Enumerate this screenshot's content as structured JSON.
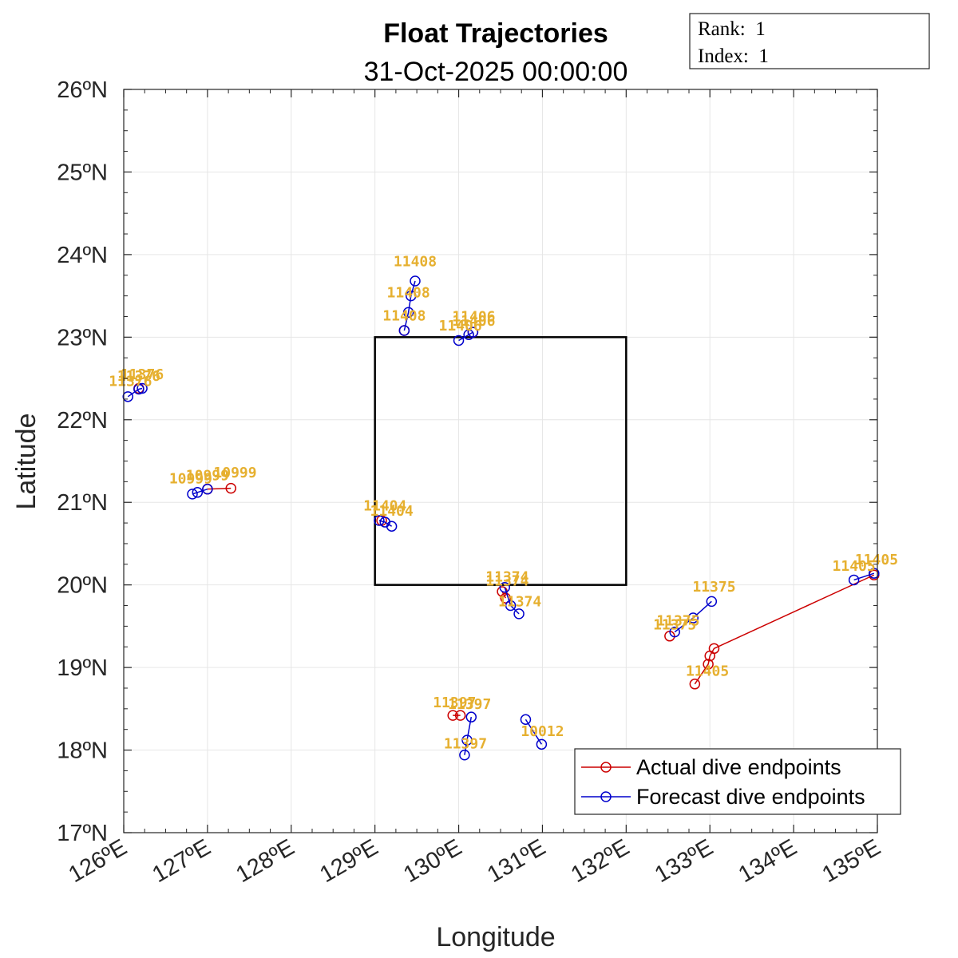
{
  "info_box": {
    "rank_line": "Rank:  1",
    "index_line": "Index:  1"
  },
  "colors": {
    "actual": "#cc0000",
    "forecast": "#0000cc",
    "label": "#e6b030",
    "box": "#000000",
    "grid": "#e6e6e6"
  },
  "chart_data": {
    "type": "line",
    "title": "Float Trajectories",
    "subtitle": "31-Oct-2025 00:00:00",
    "xlabel": "Longitude",
    "ylabel": "Latitude",
    "xlim": [
      126,
      135
    ],
    "ylim": [
      17,
      26
    ],
    "x_ticks": [
      126,
      127,
      128,
      129,
      130,
      131,
      132,
      133,
      134,
      135
    ],
    "y_ticks": [
      17,
      18,
      19,
      20,
      21,
      22,
      23,
      24,
      25,
      26
    ],
    "x_tick_labels": [
      "126ºE",
      "127ºE",
      "128ºE",
      "129ºE",
      "130ºE",
      "131ºE",
      "132ºE",
      "133ºE",
      "134ºE",
      "135ºE"
    ],
    "y_tick_labels": [
      "17ºN",
      "18ºN",
      "19ºN",
      "20ºN",
      "21ºN",
      "22ºN",
      "23ºN",
      "24ºN",
      "25ºN",
      "26ºN"
    ],
    "grid": true,
    "legend_position": "bottom-right",
    "legend": [
      {
        "name": "Actual dive endpoints",
        "kind": "actual"
      },
      {
        "name": "Forecast dive endpoints",
        "kind": "forecast"
      }
    ],
    "region_box": {
      "lon": [
        129,
        132
      ],
      "lat": [
        20,
        23
      ]
    },
    "series": [
      {
        "float": "11408",
        "kind": "actual",
        "points": [
          [
            129.35,
            23.08
          ]
        ]
      },
      {
        "float": "11408",
        "kind": "forecast",
        "points": [
          [
            129.35,
            23.08
          ],
          [
            129.4,
            23.3
          ],
          [
            129.43,
            23.5
          ],
          [
            129.48,
            23.68
          ]
        ]
      },
      {
        "float": "11406",
        "kind": "actual",
        "points": [
          [
            130.17,
            23.06
          ]
        ]
      },
      {
        "float": "11406",
        "kind": "forecast",
        "points": [
          [
            130.0,
            22.96
          ],
          [
            130.12,
            23.03
          ],
          [
            130.17,
            23.06
          ]
        ]
      },
      {
        "float": "11376",
        "kind": "actual",
        "points": [
          [
            126.18,
            22.38
          ]
        ]
      },
      {
        "float": "11376",
        "kind": "forecast",
        "points": [
          [
            126.05,
            22.28
          ],
          [
            126.18,
            22.37
          ],
          [
            126.22,
            22.38
          ]
        ]
      },
      {
        "float": "10999",
        "kind": "actual",
        "points": [
          [
            127.0,
            21.16
          ],
          [
            127.28,
            21.17
          ]
        ]
      },
      {
        "float": "10999",
        "kind": "forecast",
        "points": [
          [
            126.82,
            21.1
          ],
          [
            126.88,
            21.12
          ],
          [
            127.0,
            21.16
          ]
        ]
      },
      {
        "float": "11404",
        "kind": "actual",
        "points": [
          [
            129.08,
            20.78
          ]
        ]
      },
      {
        "float": "11404",
        "kind": "forecast",
        "points": [
          [
            129.05,
            20.78
          ],
          [
            129.12,
            20.76
          ],
          [
            129.2,
            20.71
          ]
        ]
      },
      {
        "float": "11374",
        "kind": "actual",
        "points": [
          [
            130.52,
            19.92
          ],
          [
            130.56,
            19.84
          ]
        ]
      },
      {
        "float": "11374",
        "kind": "forecast",
        "points": [
          [
            130.55,
            19.97
          ],
          [
            130.62,
            19.75
          ],
          [
            130.72,
            19.65
          ]
        ]
      },
      {
        "float": "11375",
        "kind": "actual",
        "points": [
          [
            132.52,
            19.38
          ]
        ]
      },
      {
        "float": "11375",
        "kind": "forecast",
        "points": [
          [
            132.58,
            19.43
          ],
          [
            132.8,
            19.6
          ],
          [
            133.02,
            19.8
          ]
        ]
      },
      {
        "float": "11405",
        "kind": "actual",
        "points": [
          [
            132.82,
            18.8
          ],
          [
            132.98,
            19.04
          ],
          [
            133.0,
            19.14
          ],
          [
            133.05,
            19.23
          ],
          [
            134.96,
            20.12
          ]
        ]
      },
      {
        "float": "11405",
        "kind": "forecast",
        "points": [
          [
            134.72,
            20.06
          ],
          [
            134.96,
            20.14
          ]
        ]
      },
      {
        "float": "11397",
        "kind": "actual",
        "points": [
          [
            129.93,
            18.42
          ],
          [
            130.02,
            18.42
          ]
        ]
      },
      {
        "float": "11397",
        "kind": "forecast",
        "points": [
          [
            130.15,
            18.4
          ],
          [
            130.1,
            18.12
          ],
          [
            130.07,
            17.94
          ]
        ]
      },
      {
        "float": "10012",
        "kind": "forecast",
        "points": [
          [
            130.8,
            18.37
          ],
          [
            130.99,
            18.07
          ]
        ]
      }
    ],
    "annotations": [
      {
        "text": "11408",
        "lon": 129.48,
        "lat": 23.86
      },
      {
        "text": "11408",
        "lon": 129.4,
        "lat": 23.48
      },
      {
        "text": "11408",
        "lon": 129.35,
        "lat": 23.2
      },
      {
        "text": "11406",
        "lon": 130.18,
        "lat": 23.19
      },
      {
        "text": "11406",
        "lon": 130.18,
        "lat": 23.14
      },
      {
        "text": "11406",
        "lon": 130.02,
        "lat": 23.08
      },
      {
        "text": "11376",
        "lon": 126.22,
        "lat": 22.49
      },
      {
        "text": "11376",
        "lon": 126.18,
        "lat": 22.47
      },
      {
        "text": "11376",
        "lon": 126.08,
        "lat": 22.41
      },
      {
        "text": "10999",
        "lon": 127.33,
        "lat": 21.3
      },
      {
        "text": "10999",
        "lon": 127.0,
        "lat": 21.27
      },
      {
        "text": "10999",
        "lon": 126.8,
        "lat": 21.23
      },
      {
        "text": "11404",
        "lon": 129.12,
        "lat": 20.9
      },
      {
        "text": "11404",
        "lon": 129.2,
        "lat": 20.84
      },
      {
        "text": "11374",
        "lon": 130.58,
        "lat": 20.04
      },
      {
        "text": "11374",
        "lon": 130.58,
        "lat": 19.99
      },
      {
        "text": "11374",
        "lon": 130.73,
        "lat": 19.74
      },
      {
        "text": "11375",
        "lon": 133.05,
        "lat": 19.92
      },
      {
        "text": "11375",
        "lon": 132.62,
        "lat": 19.51
      },
      {
        "text": "11375",
        "lon": 132.58,
        "lat": 19.46
      },
      {
        "text": "11405",
        "lon": 134.99,
        "lat": 20.25
      },
      {
        "text": "11405",
        "lon": 134.72,
        "lat": 20.17
      },
      {
        "text": "11405",
        "lon": 132.97,
        "lat": 18.9
      },
      {
        "text": "11397",
        "lon": 129.95,
        "lat": 18.52
      },
      {
        "text": "11397",
        "lon": 130.13,
        "lat": 18.5
      },
      {
        "text": "11397",
        "lon": 130.08,
        "lat": 18.02
      },
      {
        "text": "10012",
        "lon": 131.0,
        "lat": 18.17
      }
    ]
  }
}
